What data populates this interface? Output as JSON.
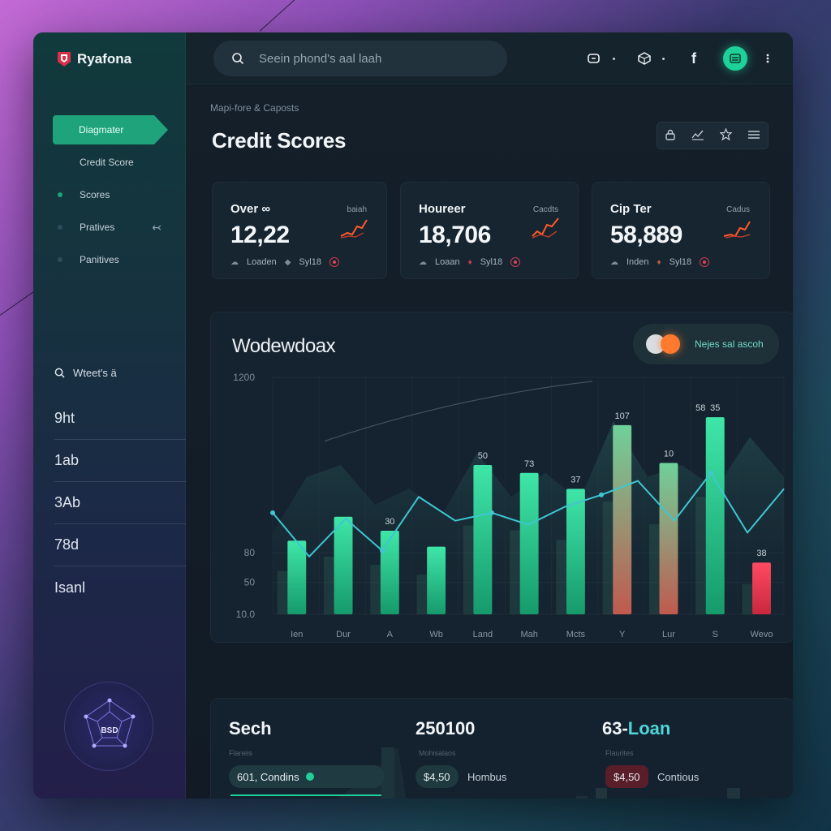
{
  "app": {
    "name": "Ryafona",
    "accent": "#1ea37a",
    "accent_glow": "#1ed19a",
    "danger": "#e0445a",
    "warning": "#ff7a2e"
  },
  "search": {
    "placeholder": "Seein phond's aal laah",
    "icon": "search-icon"
  },
  "topbar": {
    "icons": [
      "dash-icon",
      "cube-icon",
      "facebook-icon",
      "wallet-icon",
      "more-icon"
    ],
    "facebook_glyph": "f"
  },
  "sidebar": {
    "items": [
      {
        "label": "Diagmater",
        "active": true
      },
      {
        "label": "Credit Score",
        "active": false
      },
      {
        "label": "Scores",
        "active": false
      },
      {
        "label": "Pratives",
        "active": false
      },
      {
        "label": "Panitives",
        "active": false
      }
    ],
    "watch_label": "Wteet's ä",
    "watch_rows": [
      "9ht",
      "1ab",
      "3Ab",
      "78d",
      "Isanl"
    ],
    "badge_text": "BSD"
  },
  "page": {
    "breadcrumb": "Mapi-fore & Caposts",
    "title": "Credit Scores",
    "toolbar_icons": [
      "lock-icon",
      "chart-icon",
      "star-icon",
      "menu-icon"
    ]
  },
  "stats": [
    {
      "title": "Over ∞",
      "value": "12,22",
      "side": "baiah",
      "foot_a": "Loaden",
      "foot_b": "Syl18"
    },
    {
      "title": "Houreer",
      "value": "18,706",
      "side": "Cacdts",
      "foot_a": "Loaan",
      "foot_b": "Syl18"
    },
    {
      "title": "Cip Ter",
      "value": "58,889",
      "side": "Cadus",
      "foot_a": "Inden",
      "foot_b": "Syl18"
    }
  ],
  "chart": {
    "title": "Wodewdoax",
    "toggle_label": "Nejes sal ascoh"
  },
  "chart_data": {
    "type": "bar",
    "categories": [
      "Ien",
      "Dur",
      "A",
      "Wb",
      "Land",
      "Mah",
      "Mcts",
      "Y",
      "Lur",
      "S",
      "Wevo"
    ],
    "y_tick_labels": [
      "1200",
      "80",
      "50",
      "10.0"
    ],
    "ylim": [
      10,
      1200
    ],
    "series": [
      {
        "values": [
          380,
          500,
          430,
          350,
          760,
          720,
          640,
          960,
          770,
          1000,
          270
        ],
        "color": "#1ed19a"
      }
    ],
    "trend_line": [
      520,
      300,
      490,
      330,
      600,
      480,
      520,
      460,
      550,
      610,
      680,
      480,
      720,
      420,
      640
    ],
    "data_labels": [
      "30",
      "50",
      "73",
      "37",
      "107",
      "10",
      "35",
      "58",
      "38"
    ],
    "grid": true
  },
  "bottom": {
    "items": [
      {
        "title": "Sech",
        "sub": "Flaneis",
        "pill": "601, Condins",
        "pill_color": "#1f3a40"
      },
      {
        "title": "250100",
        "sub": "Mohisalaos",
        "pill": "$4,50",
        "label": "Hombus",
        "pill_color": "#1e3a3e"
      },
      {
        "title": "63-Loan",
        "title_accent": "63-",
        "title_rest": "Loan",
        "sub": "Flaurites",
        "pill": "$4,50",
        "label": "Contious",
        "pill_color": "#5a1e2a"
      }
    ]
  }
}
